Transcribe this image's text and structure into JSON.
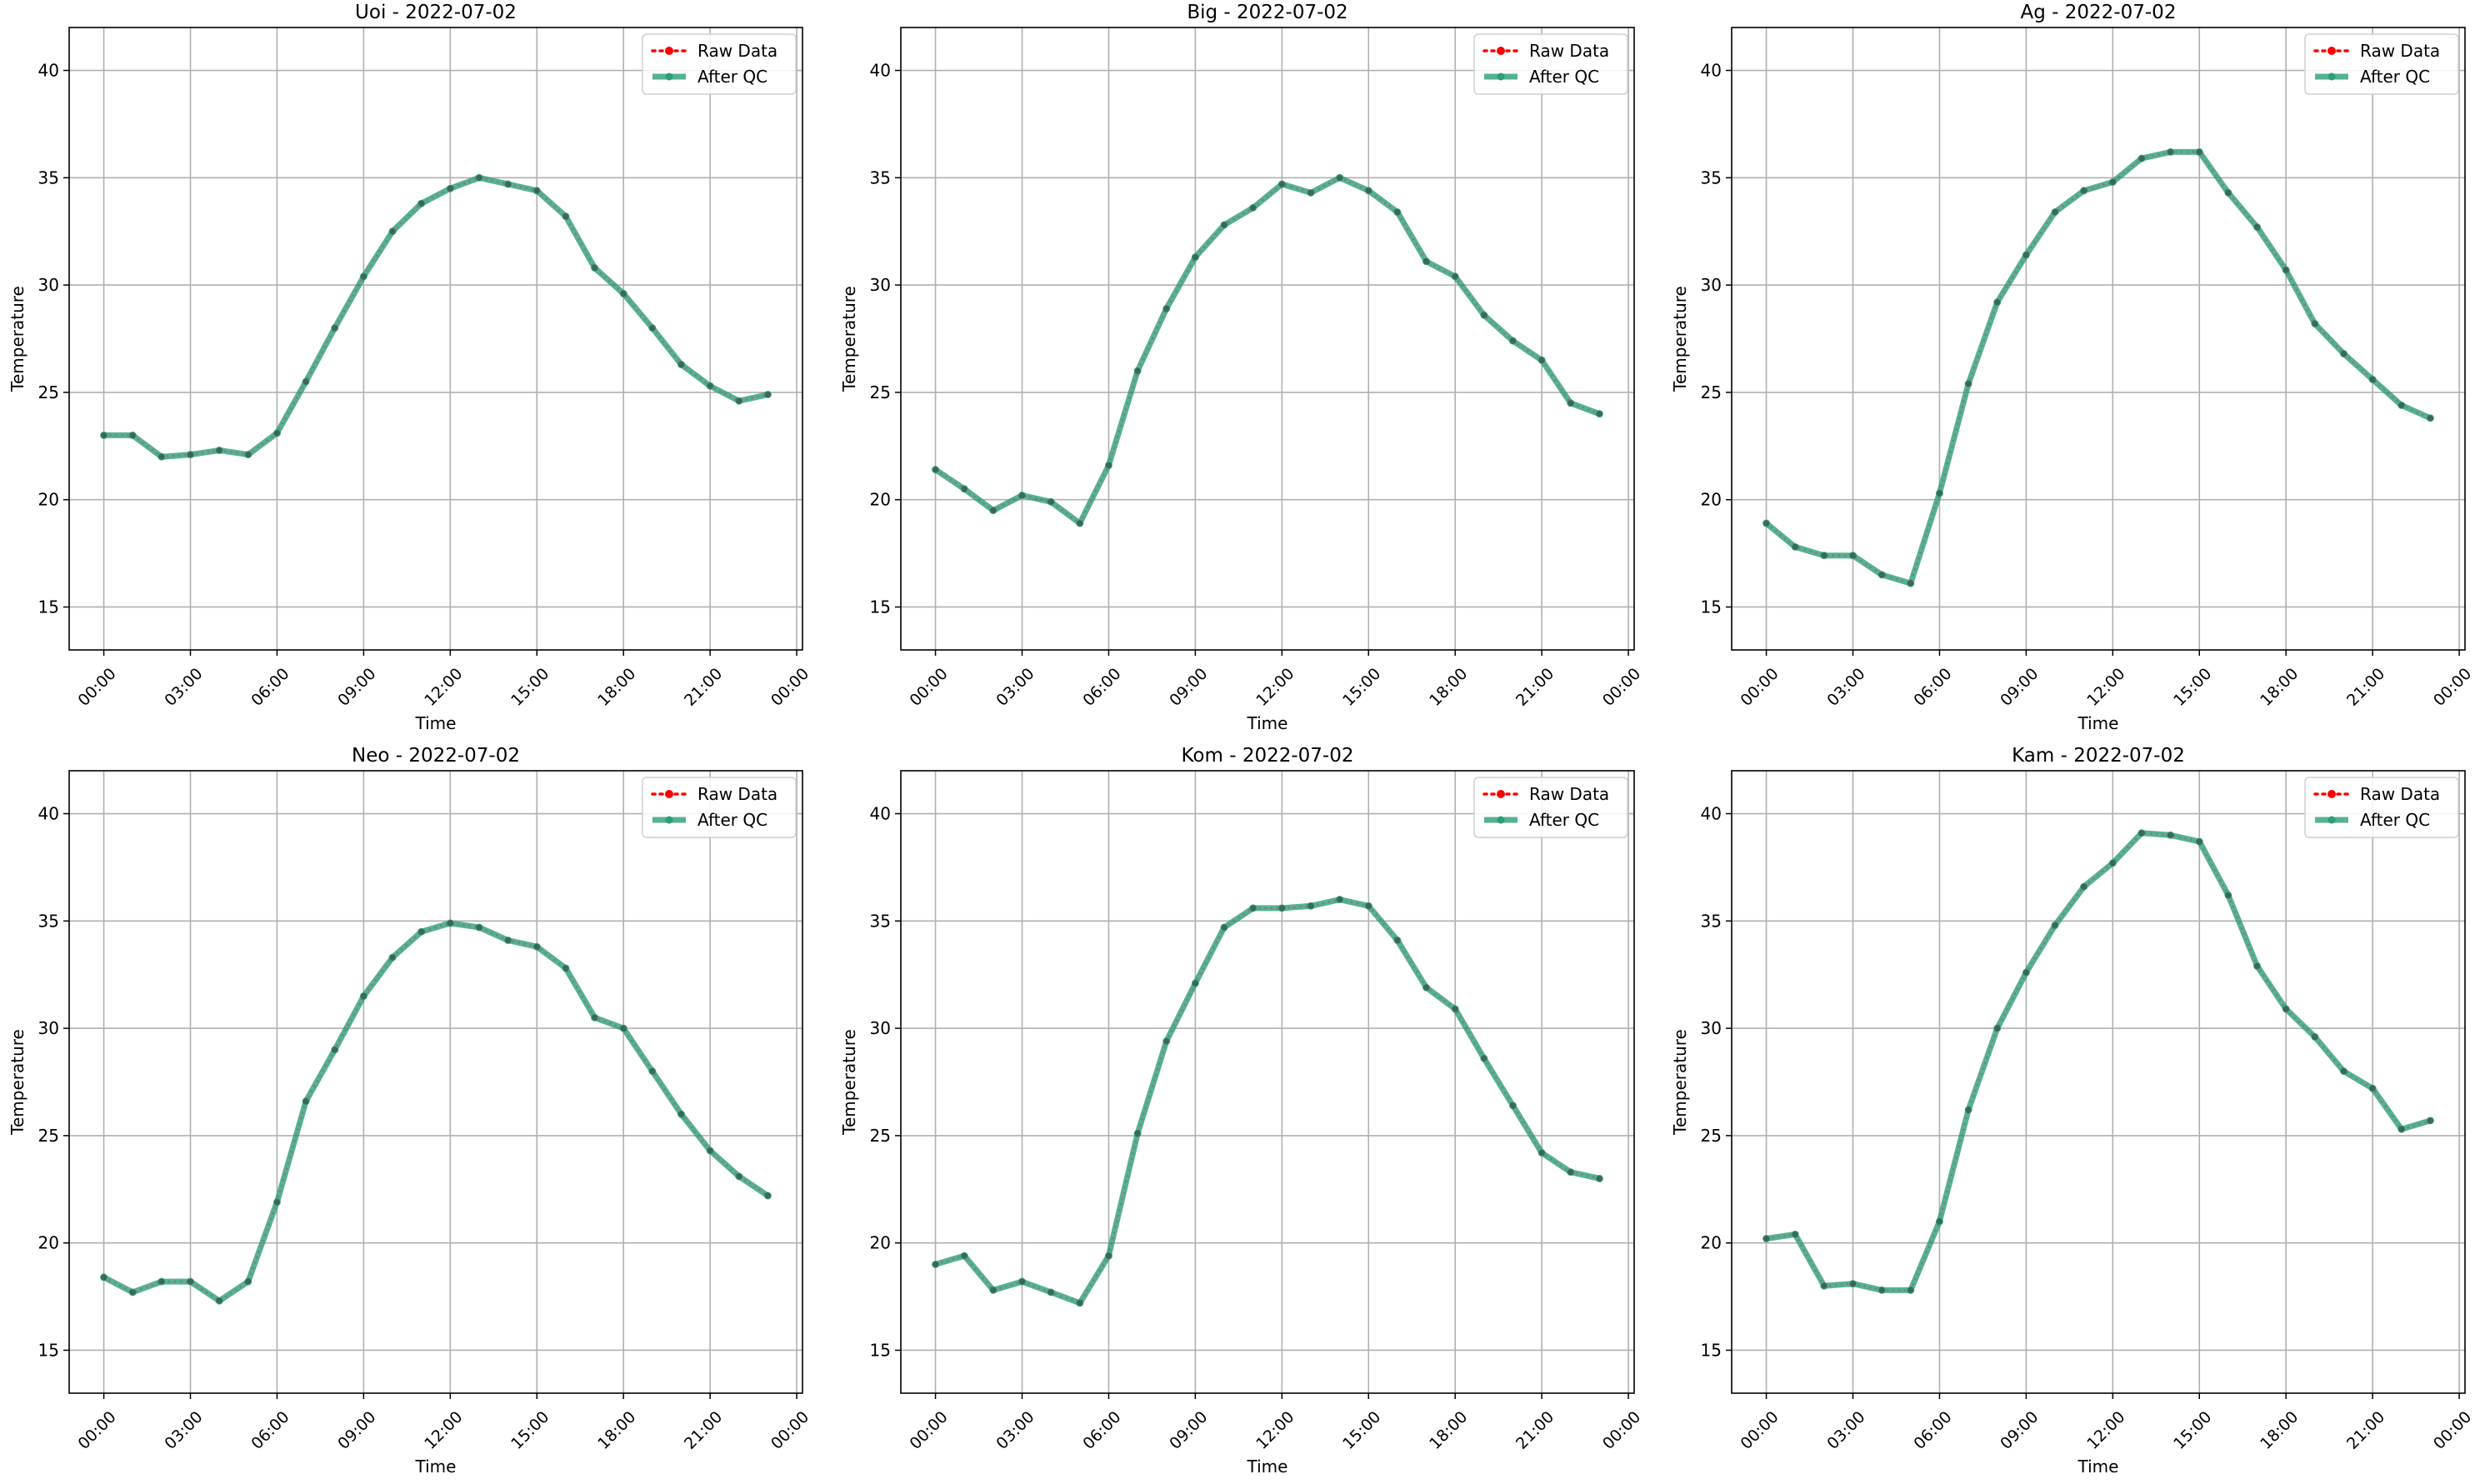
{
  "figure": {
    "legend": {
      "raw_label": "Raw Data",
      "qc_label": "After QC",
      "placement": "upper right"
    },
    "colors": {
      "raw": "#ff0000",
      "qc": "#2a9d7a",
      "grid": "#b0b0b0",
      "frame": "#000000"
    }
  },
  "chart_data": [
    {
      "type": "line",
      "title": "Uoi - 2022-07-02",
      "xlabel": "Time",
      "ylabel": "Temperature",
      "x_ticks": [
        "00:00",
        "03:00",
        "06:00",
        "09:00",
        "12:00",
        "15:00",
        "18:00",
        "21:00",
        "00:00"
      ],
      "xlim": [
        "2022-07-02 -01:12",
        "2022-07-03 00:12"
      ],
      "ylim": [
        13,
        42
      ],
      "y_ticks": [
        15,
        20,
        25,
        30,
        35,
        40
      ],
      "grid": true,
      "legend": "upper right",
      "x": [
        "00:00",
        "01:00",
        "02:00",
        "03:00",
        "04:00",
        "05:00",
        "06:00",
        "07:00",
        "08:00",
        "09:00",
        "10:00",
        "11:00",
        "12:00",
        "13:00",
        "14:00",
        "15:00",
        "16:00",
        "17:00",
        "18:00",
        "19:00",
        "20:00",
        "21:00",
        "22:00",
        "23:00"
      ],
      "series": [
        {
          "name": "Raw Data",
          "values": [
            23.0,
            23.0,
            22.0,
            22.1,
            22.3,
            22.1,
            23.1,
            25.5,
            28.0,
            30.4,
            32.5,
            33.8,
            34.5,
            35.0,
            34.7,
            34.4,
            33.2,
            30.8,
            29.6,
            28.0,
            26.3,
            25.3,
            24.6,
            24.9
          ]
        },
        {
          "name": "After QC",
          "values": [
            23.0,
            23.0,
            22.0,
            22.1,
            22.3,
            22.1,
            23.1,
            25.5,
            28.0,
            30.4,
            32.5,
            33.8,
            34.5,
            35.0,
            34.7,
            34.4,
            33.2,
            30.8,
            29.6,
            28.0,
            26.3,
            25.3,
            24.6,
            24.9
          ]
        }
      ]
    },
    {
      "type": "line",
      "title": "Big - 2022-07-02",
      "xlabel": "Time",
      "ylabel": "Temperature",
      "x_ticks": [
        "00:00",
        "03:00",
        "06:00",
        "09:00",
        "12:00",
        "15:00",
        "18:00",
        "21:00",
        "00:00"
      ],
      "xlim": [
        "2022-07-02 -01:12",
        "2022-07-03 00:12"
      ],
      "ylim": [
        13,
        42
      ],
      "y_ticks": [
        15,
        20,
        25,
        30,
        35,
        40
      ],
      "grid": true,
      "legend": "upper right",
      "x": [
        "00:00",
        "01:00",
        "02:00",
        "03:00",
        "04:00",
        "05:00",
        "06:00",
        "07:00",
        "08:00",
        "09:00",
        "10:00",
        "11:00",
        "12:00",
        "13:00",
        "14:00",
        "15:00",
        "16:00",
        "17:00",
        "18:00",
        "19:00",
        "20:00",
        "21:00",
        "22:00",
        "23:00"
      ],
      "series": [
        {
          "name": "Raw Data",
          "values": [
            21.4,
            20.5,
            19.5,
            20.2,
            19.9,
            18.9,
            21.6,
            26.0,
            28.9,
            31.3,
            32.8,
            33.6,
            34.7,
            34.3,
            35.0,
            34.4,
            33.4,
            31.1,
            30.4,
            28.6,
            27.4,
            26.5,
            24.5,
            24.0
          ]
        },
        {
          "name": "After QC",
          "values": [
            21.4,
            20.5,
            19.5,
            20.2,
            19.9,
            18.9,
            21.6,
            26.0,
            28.9,
            31.3,
            32.8,
            33.6,
            34.7,
            34.3,
            35.0,
            34.4,
            33.4,
            31.1,
            30.4,
            28.6,
            27.4,
            26.5,
            24.5,
            24.0
          ]
        }
      ]
    },
    {
      "type": "line",
      "title": "Ag - 2022-07-02",
      "xlabel": "Time",
      "ylabel": "Temperature",
      "x_ticks": [
        "00:00",
        "03:00",
        "06:00",
        "09:00",
        "12:00",
        "15:00",
        "18:00",
        "21:00",
        "00:00"
      ],
      "xlim": [
        "2022-07-02 -01:12",
        "2022-07-03 00:12"
      ],
      "ylim": [
        13,
        42
      ],
      "y_ticks": [
        15,
        20,
        25,
        30,
        35,
        40
      ],
      "grid": true,
      "legend": "upper right",
      "x": [
        "00:00",
        "01:00",
        "02:00",
        "03:00",
        "04:00",
        "05:00",
        "06:00",
        "07:00",
        "08:00",
        "09:00",
        "10:00",
        "11:00",
        "12:00",
        "13:00",
        "14:00",
        "15:00",
        "16:00",
        "17:00",
        "18:00",
        "19:00",
        "20:00",
        "21:00",
        "22:00",
        "23:00"
      ],
      "series": [
        {
          "name": "Raw Data",
          "values": [
            18.9,
            17.8,
            17.4,
            17.4,
            16.5,
            16.1,
            20.3,
            25.4,
            29.2,
            31.4,
            33.4,
            34.4,
            34.8,
            35.9,
            36.2,
            36.2,
            34.3,
            32.7,
            30.7,
            28.2,
            26.8,
            25.6,
            24.4,
            23.8
          ]
        },
        {
          "name": "After QC",
          "values": [
            18.9,
            17.8,
            17.4,
            17.4,
            16.5,
            16.1,
            20.3,
            25.4,
            29.2,
            31.4,
            33.4,
            34.4,
            34.8,
            35.9,
            36.2,
            36.2,
            34.3,
            32.7,
            30.7,
            28.2,
            26.8,
            25.6,
            24.4,
            23.8
          ]
        }
      ]
    },
    {
      "type": "line",
      "title": "Neo - 2022-07-02",
      "xlabel": "Time",
      "ylabel": "Temperature",
      "x_ticks": [
        "00:00",
        "03:00",
        "06:00",
        "09:00",
        "12:00",
        "15:00",
        "18:00",
        "21:00",
        "00:00"
      ],
      "xlim": [
        "2022-07-02 -01:12",
        "2022-07-03 00:12"
      ],
      "ylim": [
        13,
        42
      ],
      "y_ticks": [
        15,
        20,
        25,
        30,
        35,
        40
      ],
      "grid": true,
      "legend": "upper right",
      "x": [
        "00:00",
        "01:00",
        "02:00",
        "03:00",
        "04:00",
        "05:00",
        "06:00",
        "07:00",
        "08:00",
        "09:00",
        "10:00",
        "11:00",
        "12:00",
        "13:00",
        "14:00",
        "15:00",
        "16:00",
        "17:00",
        "18:00",
        "19:00",
        "20:00",
        "21:00",
        "22:00",
        "23:00"
      ],
      "series": [
        {
          "name": "Raw Data",
          "values": [
            18.4,
            17.7,
            18.2,
            18.2,
            17.3,
            18.2,
            21.9,
            26.6,
            29.0,
            31.5,
            33.3,
            34.5,
            34.9,
            34.7,
            34.1,
            33.8,
            32.8,
            30.5,
            30.0,
            28.0,
            26.0,
            24.3,
            23.1,
            22.2
          ]
        },
        {
          "name": "After QC",
          "values": [
            18.4,
            17.7,
            18.2,
            18.2,
            17.3,
            18.2,
            21.9,
            26.6,
            29.0,
            31.5,
            33.3,
            34.5,
            34.9,
            34.7,
            34.1,
            33.8,
            32.8,
            30.5,
            30.0,
            28.0,
            26.0,
            24.3,
            23.1,
            22.2
          ]
        }
      ]
    },
    {
      "type": "line",
      "title": "Kom - 2022-07-02",
      "xlabel": "Time",
      "ylabel": "Temperature",
      "x_ticks": [
        "00:00",
        "03:00",
        "06:00",
        "09:00",
        "12:00",
        "15:00",
        "18:00",
        "21:00",
        "00:00"
      ],
      "xlim": [
        "2022-07-02 -01:12",
        "2022-07-03 00:12"
      ],
      "ylim": [
        13,
        42
      ],
      "y_ticks": [
        15,
        20,
        25,
        30,
        35,
        40
      ],
      "grid": true,
      "legend": "upper right",
      "x": [
        "00:00",
        "01:00",
        "02:00",
        "03:00",
        "04:00",
        "05:00",
        "06:00",
        "07:00",
        "08:00",
        "09:00",
        "10:00",
        "11:00",
        "12:00",
        "13:00",
        "14:00",
        "15:00",
        "16:00",
        "17:00",
        "18:00",
        "19:00",
        "20:00",
        "21:00",
        "22:00",
        "23:00"
      ],
      "series": [
        {
          "name": "Raw Data",
          "values": [
            19.0,
            19.4,
            17.8,
            18.2,
            17.7,
            17.2,
            19.4,
            25.1,
            29.4,
            32.1,
            34.7,
            35.6,
            35.6,
            35.7,
            36.0,
            35.7,
            34.1,
            31.9,
            30.9,
            28.6,
            26.4,
            24.2,
            23.3,
            23.0
          ]
        },
        {
          "name": "After QC",
          "values": [
            19.0,
            19.4,
            17.8,
            18.2,
            17.7,
            17.2,
            19.4,
            25.1,
            29.4,
            32.1,
            34.7,
            35.6,
            35.6,
            35.7,
            36.0,
            35.7,
            34.1,
            31.9,
            30.9,
            28.6,
            26.4,
            24.2,
            23.3,
            23.0
          ]
        }
      ]
    },
    {
      "type": "line",
      "title": "Kam - 2022-07-02",
      "xlabel": "Time",
      "ylabel": "Temperature",
      "x_ticks": [
        "00:00",
        "03:00",
        "06:00",
        "09:00",
        "12:00",
        "15:00",
        "18:00",
        "21:00",
        "00:00"
      ],
      "xlim": [
        "2022-07-02 -01:12",
        "2022-07-03 00:12"
      ],
      "ylim": [
        13,
        42
      ],
      "y_ticks": [
        15,
        20,
        25,
        30,
        35,
        40
      ],
      "grid": true,
      "legend": "upper right",
      "x": [
        "00:00",
        "01:00",
        "02:00",
        "03:00",
        "04:00",
        "05:00",
        "06:00",
        "07:00",
        "08:00",
        "09:00",
        "10:00",
        "11:00",
        "12:00",
        "13:00",
        "14:00",
        "15:00",
        "16:00",
        "17:00",
        "18:00",
        "19:00",
        "20:00",
        "21:00",
        "22:00",
        "23:00"
      ],
      "series": [
        {
          "name": "Raw Data",
          "values": [
            20.2,
            20.4,
            18.0,
            18.1,
            17.8,
            17.8,
            21.0,
            26.2,
            30.0,
            32.6,
            34.8,
            36.6,
            37.7,
            39.1,
            39.0,
            38.7,
            36.2,
            32.9,
            30.9,
            29.6,
            28.0,
            27.2,
            25.3,
            25.7
          ]
        },
        {
          "name": "After QC",
          "values": [
            20.2,
            20.4,
            18.0,
            18.1,
            17.8,
            17.8,
            21.0,
            26.2,
            30.0,
            32.6,
            34.8,
            36.6,
            37.7,
            39.1,
            39.0,
            38.7,
            36.2,
            32.9,
            30.9,
            29.6,
            28.0,
            27.2,
            25.3,
            25.7
          ]
        }
      ]
    }
  ]
}
